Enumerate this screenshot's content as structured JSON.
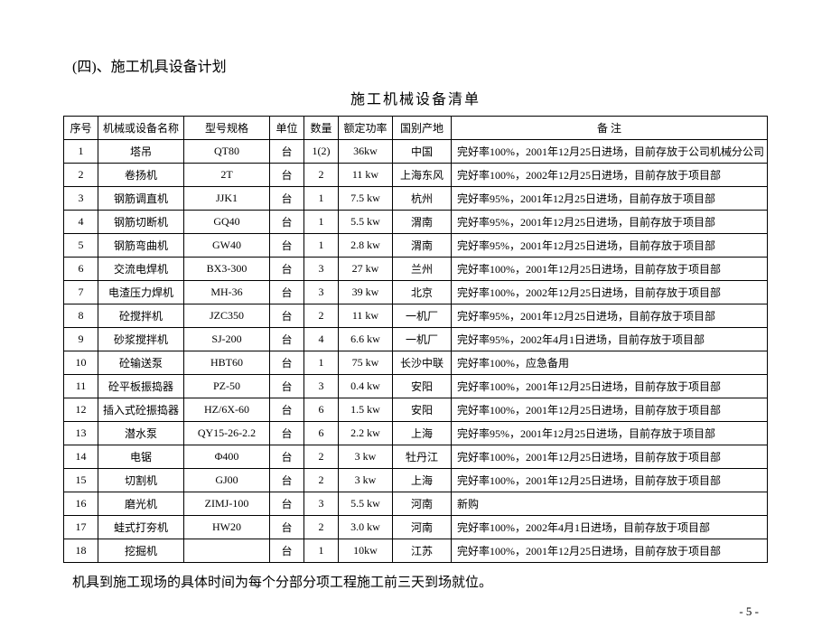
{
  "section_title": "(四)、施工机具设备计划",
  "table_title": "施工机械设备清单",
  "columns": {
    "seq": "序号",
    "name": "机械或设备名称",
    "model": "型号规格",
    "unit": "单位",
    "qty": "数量",
    "power": "额定功率",
    "origin": "国别产地",
    "remarks": "备  注"
  },
  "rows": [
    {
      "seq": "1",
      "name": "塔吊",
      "model": "QT80",
      "unit": "台",
      "qty": "1(2)",
      "power": "36kw",
      "origin": "中国",
      "remarks": "完好率100%，2001年12月25日进场，目前存放于公司机械分公司"
    },
    {
      "seq": "2",
      "name": "卷扬机",
      "model": "2T",
      "unit": "台",
      "qty": "2",
      "power": "11 kw",
      "origin": "上海东风",
      "remarks": "完好率100%，2002年12月25日进场，目前存放于项目部"
    },
    {
      "seq": "3",
      "name": "钢筋调直机",
      "model": "JJK1",
      "unit": "台",
      "qty": "1",
      "power": "7.5 kw",
      "origin": "杭州",
      "remarks": "完好率95%，2001年12月25日进场，目前存放于项目部"
    },
    {
      "seq": "4",
      "name": "钢筋切断机",
      "model": "GQ40",
      "unit": "台",
      "qty": "1",
      "power": "5.5 kw",
      "origin": "渭南",
      "remarks": "完好率95%，2001年12月25日进场，目前存放于项目部"
    },
    {
      "seq": "5",
      "name": "钢筋弯曲机",
      "model": "GW40",
      "unit": "台",
      "qty": "1",
      "power": "2.8 kw",
      "origin": "渭南",
      "remarks": "完好率95%，2001年12月25日进场，目前存放于项目部"
    },
    {
      "seq": "6",
      "name": "交流电焊机",
      "model": "BX3-300",
      "unit": "台",
      "qty": "3",
      "power": "27 kw",
      "origin": "兰州",
      "remarks": "完好率100%，2001年12月25日进场，目前存放于项目部"
    },
    {
      "seq": "7",
      "name": "电渣压力焊机",
      "model": "MH-36",
      "unit": "台",
      "qty": "3",
      "power": "39 kw",
      "origin": "北京",
      "remarks": "完好率100%，2002年12月25日进场，目前存放于项目部"
    },
    {
      "seq": "8",
      "name": "砼搅拌机",
      "model": "JZC350",
      "unit": "台",
      "qty": "2",
      "power": "11 kw",
      "origin": "一机厂",
      "remarks": "完好率95%，2001年12月25日进场，目前存放于项目部"
    },
    {
      "seq": "9",
      "name": "砂浆搅拌机",
      "model": "SJ-200",
      "unit": "台",
      "qty": "4",
      "power": "6.6 kw",
      "origin": "一机厂",
      "remarks": "完好率95%，2002年4月1日进场，目前存放于项目部"
    },
    {
      "seq": "10",
      "name": "砼输送泵",
      "model": "HBT60",
      "unit": "台",
      "qty": "1",
      "power": "75 kw",
      "origin": "长沙中联",
      "remarks": "完好率100%，应急备用"
    },
    {
      "seq": "11",
      "name": "砼平板振捣器",
      "model": "PZ-50",
      "unit": "台",
      "qty": "3",
      "power": "0.4 kw",
      "origin": "安阳",
      "remarks": "完好率100%，2001年12月25日进场，目前存放于项目部"
    },
    {
      "seq": "12",
      "name": "插入式砼振捣器",
      "model": "HZ/6X-60",
      "unit": "台",
      "qty": "6",
      "power": "1.5 kw",
      "origin": "安阳",
      "remarks": "完好率100%，2001年12月25日进场，目前存放于项目部"
    },
    {
      "seq": "13",
      "name": "潜水泵",
      "model": "QY15-26-2.2",
      "unit": "台",
      "qty": "6",
      "power": "2.2 kw",
      "origin": "上海",
      "remarks": "完好率95%，2001年12月25日进场，目前存放于项目部"
    },
    {
      "seq": "14",
      "name": "电锯",
      "model": "Φ400",
      "unit": "台",
      "qty": "2",
      "power": "3 kw",
      "origin": "牡丹江",
      "remarks": "完好率100%，2001年12月25日进场，目前存放于项目部"
    },
    {
      "seq": "15",
      "name": "切割机",
      "model": "GJ00",
      "unit": "台",
      "qty": "2",
      "power": "3 kw",
      "origin": "上海",
      "remarks": "完好率100%，2001年12月25日进场，目前存放于项目部"
    },
    {
      "seq": "16",
      "name": "磨光机",
      "model": "ZIMJ-100",
      "unit": "台",
      "qty": "3",
      "power": "5.5 kw",
      "origin": "河南",
      "remarks": "新购"
    },
    {
      "seq": "17",
      "name": "蛙式打夯机",
      "model": "HW20",
      "unit": "台",
      "qty": "2",
      "power": "3.0 kw",
      "origin": "河南",
      "remarks": "完好率100%，2002年4月1日进场，目前存放于项目部"
    },
    {
      "seq": "18",
      "name": "挖掘机",
      "model": "",
      "unit": "台",
      "qty": "1",
      "power": "10kw",
      "origin": "江苏",
      "remarks": "完好率100%，2001年12月25日进场，目前存放于项目部"
    }
  ],
  "footer_note": "机具到施工现场的具体时间为每个分部分项工程施工前三天到场就位。",
  "page_number": "- 5 -"
}
